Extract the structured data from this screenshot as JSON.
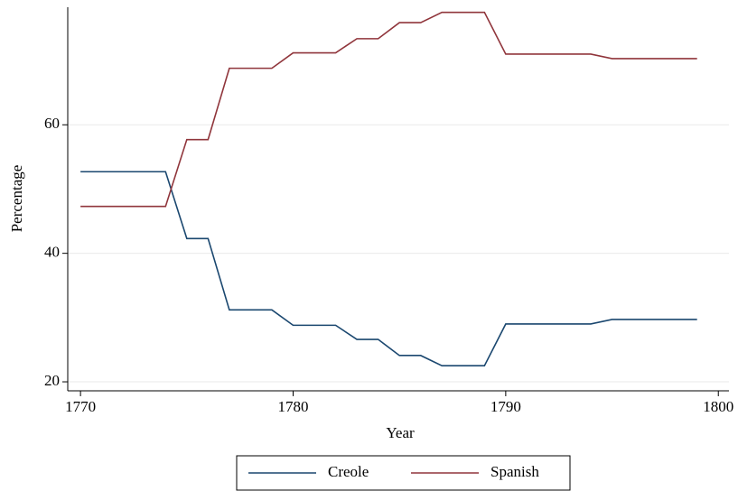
{
  "chart_data": {
    "type": "line",
    "x_label": "Year",
    "y_label": "Percentage",
    "x": [
      1770,
      1771,
      1772,
      1773,
      1774,
      1775,
      1776,
      1777,
      1778,
      1779,
      1780,
      1781,
      1782,
      1783,
      1784,
      1785,
      1786,
      1787,
      1788,
      1789,
      1790,
      1791,
      1792,
      1793,
      1794,
      1795,
      1796,
      1797,
      1798,
      1799
    ],
    "series": [
      {
        "name": "Creole",
        "color": "#1a476f",
        "values": [
          52.7,
          52.7,
          52.7,
          52.7,
          52.7,
          42.3,
          42.3,
          31.2,
          31.2,
          31.2,
          28.8,
          28.8,
          28.8,
          26.6,
          26.6,
          24.1,
          24.1,
          22.5,
          22.5,
          22.5,
          29.0,
          29.0,
          29.0,
          29.0,
          29.0,
          29.7,
          29.7,
          29.7,
          29.7,
          29.7
        ]
      },
      {
        "name": "Spanish",
        "color": "#90353b",
        "values": [
          47.3,
          47.3,
          47.3,
          47.3,
          47.3,
          57.7,
          57.7,
          68.8,
          68.8,
          68.8,
          71.2,
          71.2,
          71.2,
          73.4,
          73.4,
          75.9,
          75.9,
          77.5,
          77.5,
          77.5,
          71.0,
          71.0,
          71.0,
          71.0,
          71.0,
          70.3,
          70.3,
          70.3,
          70.3,
          70.3
        ]
      }
    ],
    "xlim": [
      1769.4,
      1800.5
    ],
    "xticks": [
      1770,
      1780,
      1790,
      1800
    ],
    "ylim": [
      18.6,
      78.3
    ],
    "yticks": [
      20,
      40,
      60
    ],
    "grid": true,
    "legend": "bottom"
  }
}
